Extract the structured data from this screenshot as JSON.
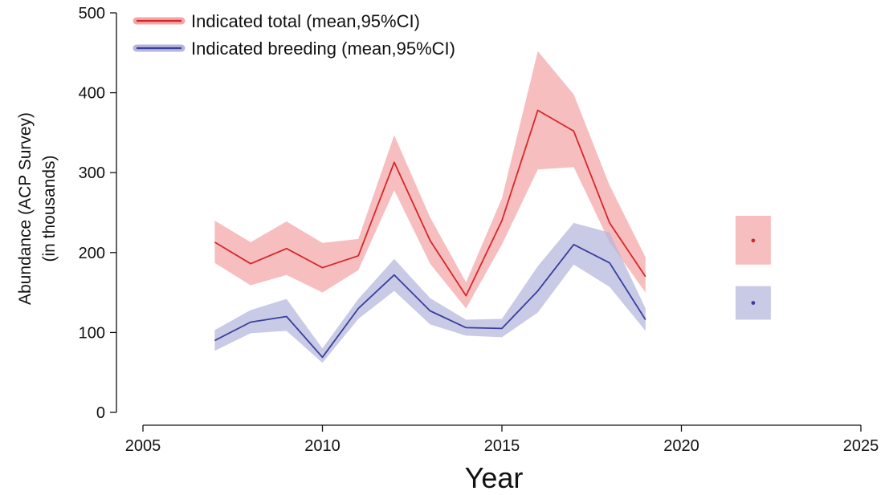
{
  "chart_data": {
    "type": "line",
    "xlabel": "Year",
    "ylabel_lines": [
      "Abundance (ACP Survey)",
      "(in thousands)"
    ],
    "xlim": [
      2005,
      2025
    ],
    "ylim": [
      0,
      500
    ],
    "x_ticks": [
      "2005",
      "2010",
      "2015",
      "2020",
      "2025"
    ],
    "y_ticks": [
      "0",
      "100",
      "200",
      "300",
      "400",
      "500"
    ],
    "grid": false,
    "legend_position": "top-left",
    "series": [
      {
        "name": "Indicated total (mean,95%CI)",
        "color": "#d62728",
        "band_color": "#f4a5a7",
        "x": [
          2007,
          2008,
          2009,
          2010,
          2011,
          2012,
          2013,
          2014,
          2015,
          2016,
          2017,
          2018,
          2019
        ],
        "mean": [
          213,
          186,
          205,
          181,
          196,
          313,
          215,
          146,
          240,
          378,
          352,
          237,
          170
        ],
        "lower": [
          187,
          159,
          172,
          150,
          178,
          278,
          186,
          130,
          210,
          304,
          307,
          213,
          150
        ],
        "upper": [
          240,
          213,
          239,
          212,
          217,
          347,
          244,
          163,
          268,
          452,
          398,
          284,
          194
        ],
        "extra_point": {
          "x": 2022,
          "mean": 215,
          "lower": 185,
          "upper": 246
        }
      },
      {
        "name": "Indicated breeding (mean,95%CI)",
        "color": "#3a3f9b",
        "band_color": "#b4b6dd",
        "x": [
          2007,
          2008,
          2009,
          2010,
          2011,
          2012,
          2013,
          2014,
          2015,
          2016,
          2017,
          2018,
          2019
        ],
        "mean": [
          90,
          113,
          120,
          69,
          130,
          172,
          127,
          106,
          105,
          152,
          210,
          187,
          116
        ],
        "lower": [
          77,
          99,
          102,
          62,
          117,
          152,
          110,
          96,
          94,
          125,
          185,
          157,
          102
        ],
        "upper": [
          103,
          128,
          142,
          80,
          142,
          192,
          143,
          116,
          117,
          183,
          237,
          225,
          130
        ],
        "extra_point": {
          "x": 2022,
          "mean": 137,
          "lower": 116,
          "upper": 158
        }
      }
    ]
  }
}
